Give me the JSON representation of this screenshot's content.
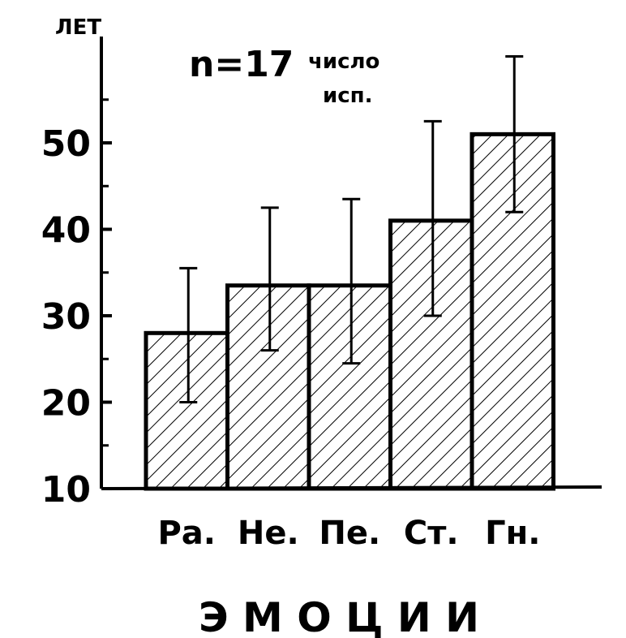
{
  "chart_data": {
    "type": "bar",
    "ylabel": "ЛЕТ",
    "xlabel": "Э М О Ц И И",
    "annotation": {
      "main": "n=17",
      "sub_line1": "число",
      "sub_line2": "исп."
    },
    "categories": [
      "Ра.",
      "Не.",
      "Пе.",
      "Ст.",
      "Гн."
    ],
    "values": [
      28,
      33.5,
      33.5,
      41,
      51
    ],
    "error_high": [
      35.5,
      42.5,
      43.5,
      52.5,
      60
    ],
    "error_low": [
      20,
      26,
      24.5,
      30,
      42
    ],
    "ylim": [
      10,
      60
    ],
    "yticks": [
      10,
      20,
      30,
      40,
      50
    ],
    "ytick_labels": [
      "10",
      "20",
      "30",
      "40",
      "50"
    ],
    "grid": false,
    "bar_pattern": "diagonal-hatch",
    "color": "#000000"
  }
}
